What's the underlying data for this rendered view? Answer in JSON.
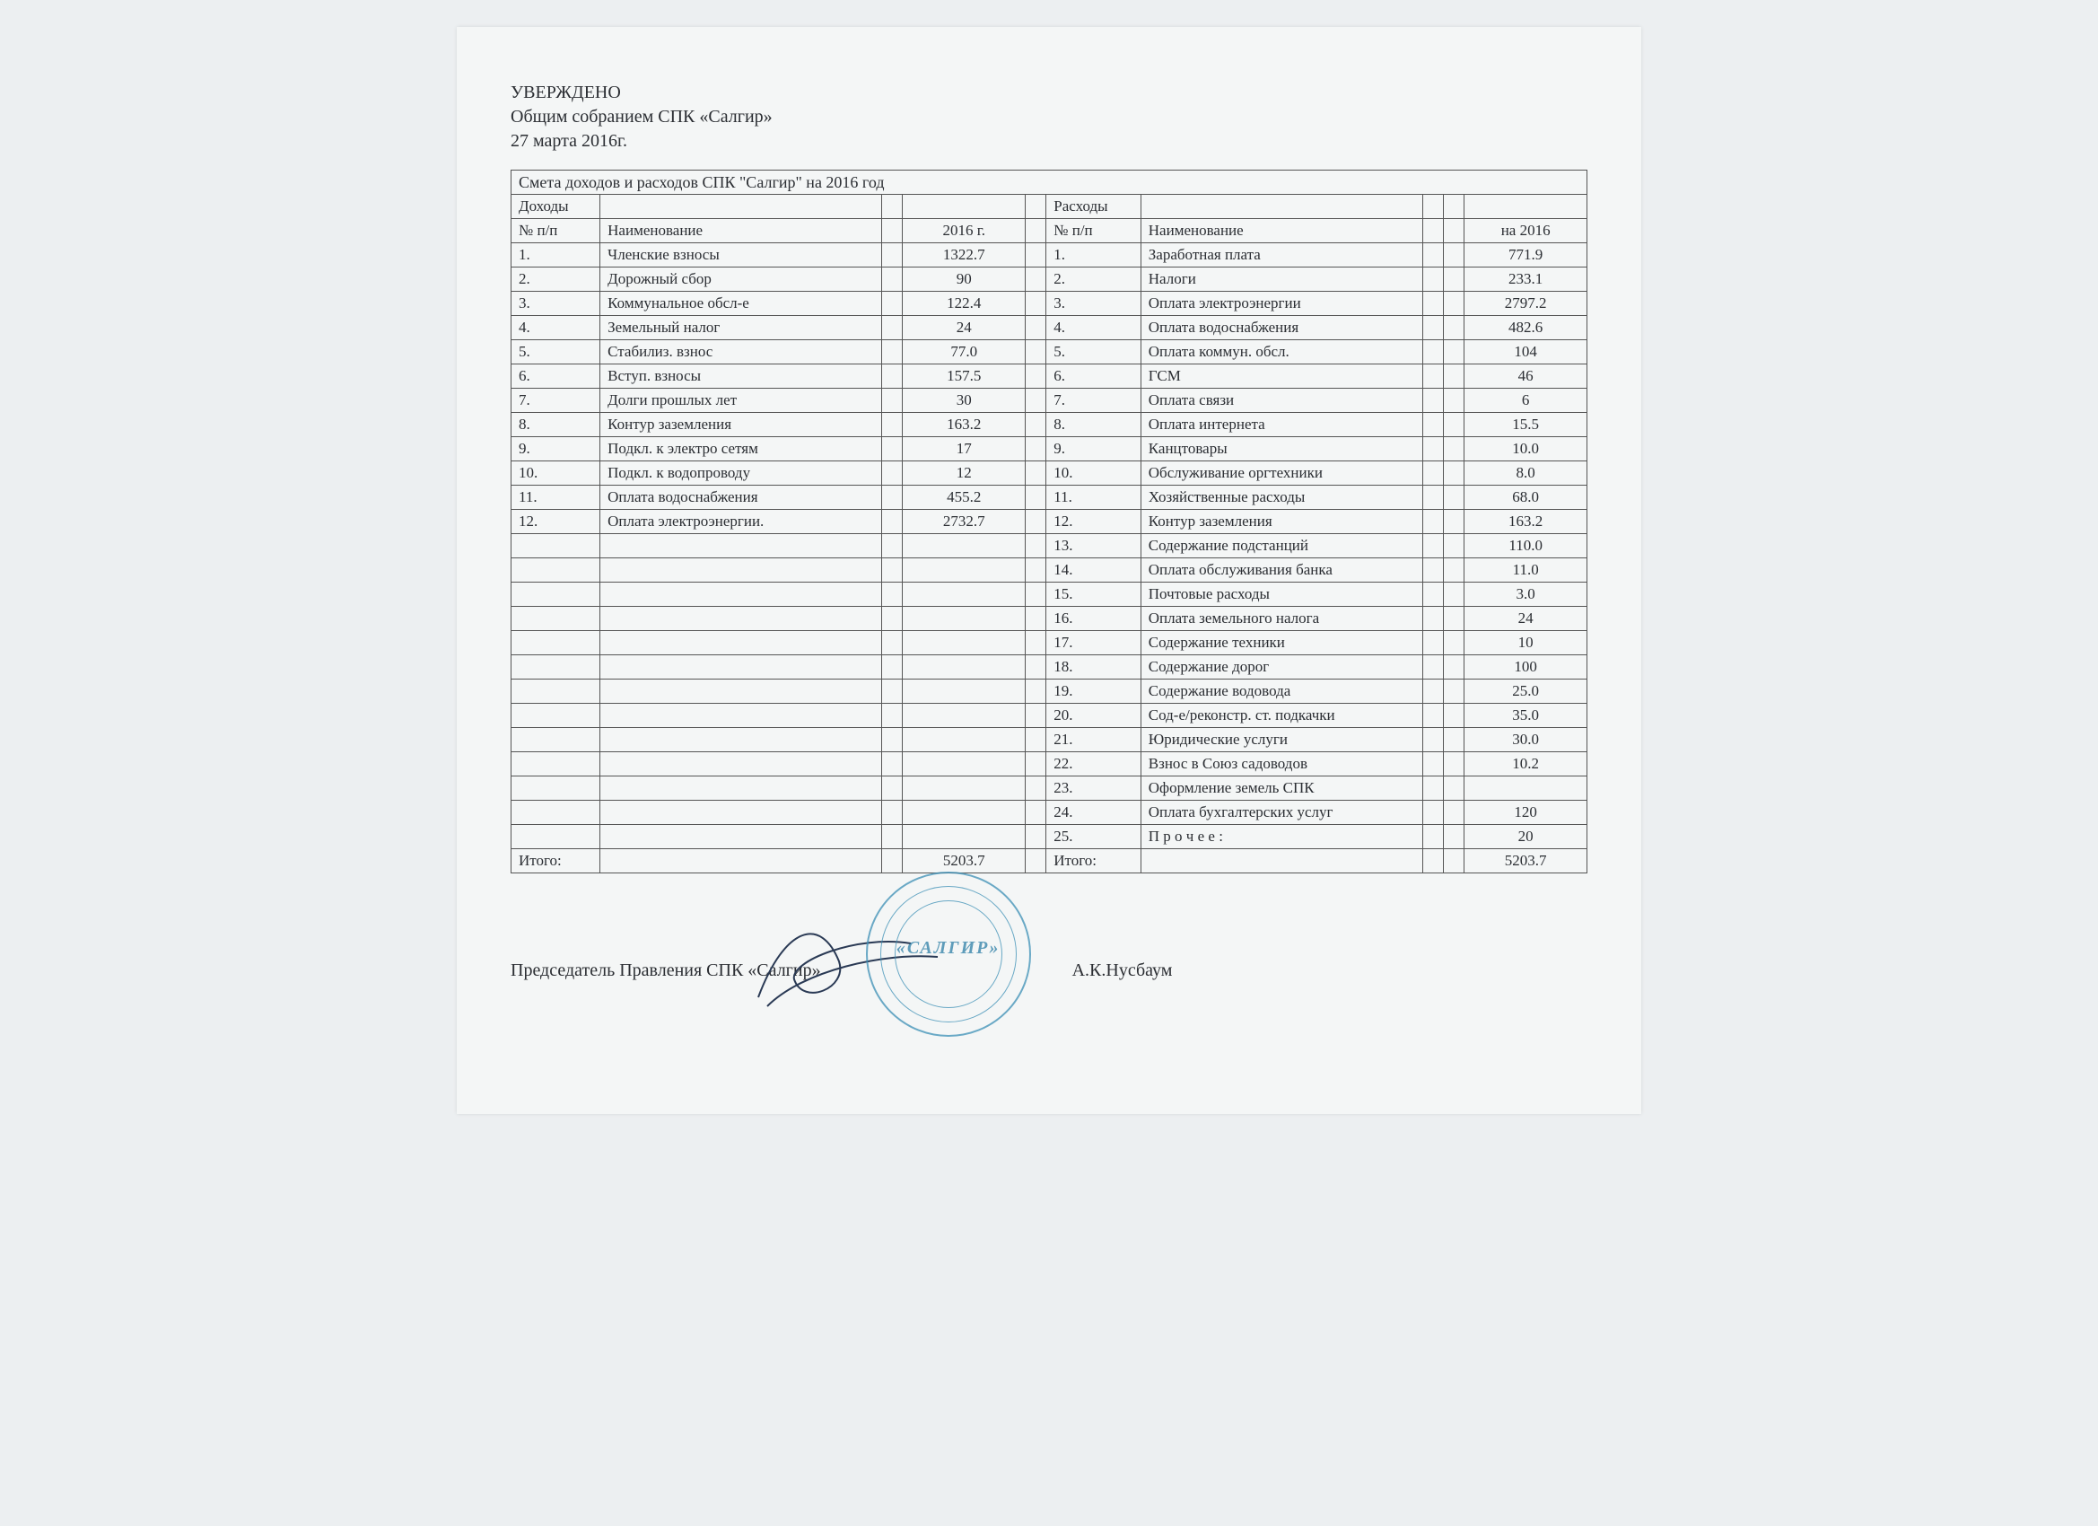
{
  "header": {
    "approved": "УВЕРЖДЕНО",
    "assembly": "Общим собранием СПК «Салгир»",
    "date": "27 марта 2016г."
  },
  "table": {
    "title": "Смета доходов и расходов СПК \"Салгир\" на 2016 год",
    "income_label": "Доходы",
    "expense_label": "Расходы",
    "num_header": "№ п/п",
    "name_header": "Наименование",
    "year_header": "2016 г.",
    "year2_header": "на 2016",
    "total_label": "Итого:"
  },
  "income": [
    {
      "n": "1.",
      "name": "Членские  взносы",
      "val": "1322.7"
    },
    {
      "n": "2.",
      "name": "Дорожный  сбор",
      "val": "90"
    },
    {
      "n": "3.",
      "name": "Коммунальное обсл-е",
      "val": "122.4"
    },
    {
      "n": "4.",
      "name": "Земельный  налог",
      "val": "24"
    },
    {
      "n": "5.",
      "name": "Стабилиз.  взнос",
      "val": "77.0"
    },
    {
      "n": "6.",
      "name": "Вступ.  взносы",
      "val": "157.5"
    },
    {
      "n": "7.",
      "name": "Долги прошлых лет",
      "val": "30"
    },
    {
      "n": "8.",
      "name": "Контур заземления",
      "val": "163.2"
    },
    {
      "n": "9.",
      "name": "Подкл.  к электро сетям",
      "val": "17"
    },
    {
      "n": "10.",
      "name": "Подкл.  к водопроводу",
      "val": "12"
    },
    {
      "n": "11.",
      "name": "Оплата водоснабжения",
      "val": "455.2"
    },
    {
      "n": "12.",
      "name": "Оплата электроэнергии.",
      "val": "2732.7"
    }
  ],
  "income_total": "5203.7",
  "expense": [
    {
      "n": "1.",
      "name": "Заработная  плата",
      "val": "771.9"
    },
    {
      "n": "2.",
      "name": "Налоги",
      "val": "233.1"
    },
    {
      "n": "3.",
      "name": "Оплата электроэнергии",
      "val": "2797.2"
    },
    {
      "n": "4.",
      "name": "Оплата водоснабжения",
      "val": "482.6"
    },
    {
      "n": "5.",
      "name": "Оплата  коммун. обсл.",
      "val": "104"
    },
    {
      "n": "6.",
      "name": "ГСМ",
      "val": "46"
    },
    {
      "n": "7.",
      "name": "Оплата связи",
      "val": "6"
    },
    {
      "n": "8.",
      "name": "Оплата интернета",
      "val": "15.5"
    },
    {
      "n": "9.",
      "name": "Канцтовары",
      "val": "10.0"
    },
    {
      "n": "10.",
      "name": "Обслуживание оргтехники",
      "val": "8.0"
    },
    {
      "n": "11.",
      "name": "Хозяйственные  расходы",
      "val": "68.0"
    },
    {
      "n": "12.",
      "name": "Контур  заземления",
      "val": "163.2"
    },
    {
      "n": "13.",
      "name": "Содержание подстанций",
      "val": "110.0"
    },
    {
      "n": "14.",
      "name": "Оплата обслуживания банка",
      "val": "11.0"
    },
    {
      "n": "15.",
      "name": "Почтовые расходы",
      "val": "3.0"
    },
    {
      "n": "16.",
      "name": "Оплата земельного налога",
      "val": "24"
    },
    {
      "n": "17.",
      "name": "Содержание техники",
      "val": "10"
    },
    {
      "n": "18.",
      "name": "Содержание дорог",
      "val": "100"
    },
    {
      "n": "19.",
      "name": "Содержание водовода",
      "val": "25.0"
    },
    {
      "n": "20.",
      "name": "Сод-е/реконстр. ст. подкачки",
      "val": "35.0"
    },
    {
      "n": "21.",
      "name": "Юридические услуги",
      "val": "30.0"
    },
    {
      "n": "22.",
      "name": "Взнос в Союз садоводов",
      "val": "10.2"
    },
    {
      "n": "23.",
      "name": "Оформление земель СПК",
      "val": ""
    },
    {
      "n": "24.",
      "name": "Оплата бухгалтерских услуг",
      "val": "120"
    },
    {
      "n": "25.",
      "name": "П р о ч е е :",
      "val": "20"
    }
  ],
  "expense_total": "5203.7",
  "footer": {
    "chairman": "Председатель Правления СПК «Салгир»",
    "name": "А.К.Нусбаум",
    "stamp_text": "«САЛГИР»"
  },
  "style": {
    "page_bg": "#f4f6f6",
    "border_color": "#555",
    "stamp_color": "#3b8fb5",
    "font": "Times New Roman"
  }
}
